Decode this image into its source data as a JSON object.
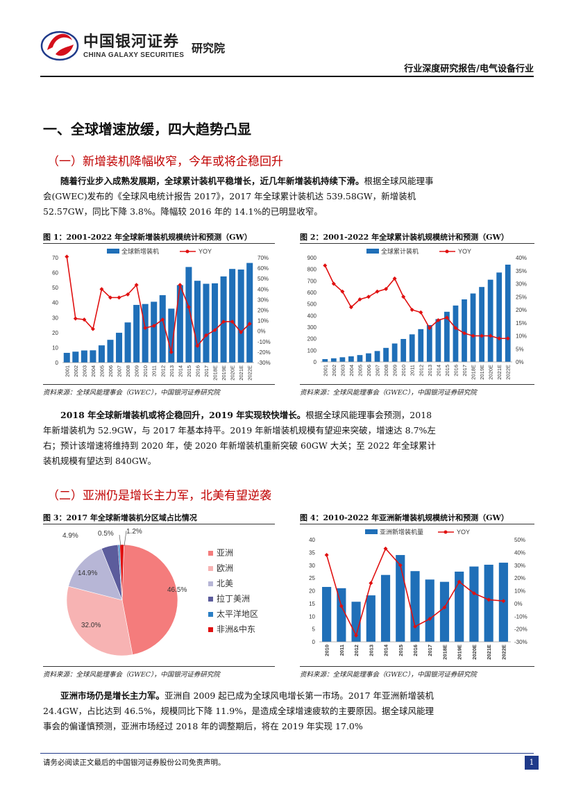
{
  "header": {
    "brand_cn": "中国银河证券",
    "brand_inst": "研究院",
    "brand_en": "CHINA GALAXY SECURITIES",
    "report_type": "行业深度研究报告/电气设备行业"
  },
  "section1": {
    "title": "一、全球增速放缓，四大趋势凸显",
    "sub1": "（一）新增装机降幅收窄，今年或将企稳回升",
    "para1_bold": "随着行业步入成熟发展期，全球累计装机平稳增长，近几年新增装机持续下滑。",
    "para1_text": "根据全球风能理事会(GWEC)发布的《全球风电统计报告 2017》，2017 年全球累计装机达 539.58GW，新增装机 52.57GW，同比下降 3.8%。降幅较 2016 年的 14.1%的已明显收窄。",
    "para2_bold": "2018 年全球新增装机或将企稳回升，2019 年实现较快增长。",
    "para2_text": "根据全球风能理事会预测，2018 年新增装机为 52.9GW，与 2017 年基本持平。2019 年新增装机规模有望迎来突破，增速达 8.7%左右；预计该增速将维持到 2020 年，使 2020 年新增装机重新突破 60GW 大关；至 2022 年全球累计装机规模有望达到 840GW。",
    "sub2": "（二）亚洲仍是增长主力军，北美有望逆袭",
    "para3_bold": "亚洲市场仍是增长主力军。",
    "para3_text": "亚洲自 2009 起已成为全球风电增长第一市场。2017 年亚洲新增装机 24.4GW，占比达到 46.5%，规模同比下降 11.9%，是造成全球增速疲软的主要原因。据全球风能理事会的偏谨慎预测，亚洲市场经过 2018 年的调整期后，将在 2019 年实现 17.0%"
  },
  "figures": {
    "fig1_title": "图 1：2001-2022 年全球新增装机规模统计和预测（GW）",
    "fig2_title": "图 2：2001-2022 年全球累计装机规模统计和预测（GW）",
    "fig3_title": "图 3：2017 年全球新增装机分区域占比情况",
    "fig4_title": "图 4：2010-2022 年亚洲新增装机规模统计和预测（GW）",
    "source": "资料来源：全球风能理事会（GWEC），中国银河证券研究院"
  },
  "chart_data": [
    {
      "type": "bar",
      "categories": [
        "2001",
        "2002",
        "2003",
        "2004",
        "2005",
        "2006",
        "2007",
        "2008",
        "2009",
        "2010",
        "2011",
        "2012",
        "2013",
        "2014",
        "2015",
        "2016",
        "2017",
        "2018E",
        "2019E",
        "2020E",
        "2021E",
        "2022E"
      ],
      "series": [
        {
          "name": "全球新增装机",
          "type": "bar",
          "axis": "left",
          "values": [
            6.5,
            7.3,
            8.1,
            8.2,
            11.5,
            15.2,
            19.9,
            26.8,
            38.5,
            39.1,
            40.6,
            45.0,
            36.0,
            51.7,
            63.8,
            54.6,
            52.6,
            52.9,
            57.5,
            62.5,
            62.1,
            66.5
          ]
        },
        {
          "name": "YOY",
          "type": "line",
          "axis": "right",
          "values": [
            71,
            12,
            11,
            2,
            40,
            32,
            32,
            35,
            44,
            3,
            5,
            11,
            -20,
            44,
            23,
            -14,
            -4,
            1,
            9,
            9,
            -1,
            7
          ]
        }
      ],
      "ylim_left": [
        0,
        70
      ],
      "ylim_right": [
        -30,
        70
      ],
      "yticks_left": [
        "0",
        "10",
        "20",
        "30",
        "40",
        "50",
        "60",
        "70"
      ],
      "yticks_right": [
        "-30%",
        "-20%",
        "-10%",
        "0%",
        "10%",
        "20%",
        "30%",
        "40%",
        "50%",
        "60%",
        "70%"
      ],
      "bar_color": "#1f6fb8",
      "line_color": "#e01010"
    },
    {
      "type": "bar",
      "categories": [
        "2001",
        "2002",
        "2003",
        "2004",
        "2005",
        "2006",
        "2007",
        "2008",
        "2009",
        "2010",
        "2011",
        "2012",
        "2013",
        "2014",
        "2015",
        "2016",
        "2017",
        "2018E",
        "2019E",
        "2020E",
        "2021E",
        "2022E"
      ],
      "series": [
        {
          "name": "全球累计装机",
          "type": "bar",
          "axis": "left",
          "values": [
            24,
            31,
            40,
            48,
            59,
            74,
            94,
            121,
            159,
            198,
            238,
            283,
            318,
            370,
            433,
            487,
            540,
            591,
            647,
            710,
            772,
            840
          ]
        },
        {
          "name": "YOY",
          "type": "line",
          "axis": "right",
          "values": [
            37,
            30,
            27,
            21,
            24,
            25,
            27,
            28,
            32,
            25,
            20,
            19,
            13,
            16,
            17,
            13,
            11,
            10,
            10,
            10,
            9,
            9
          ]
        }
      ],
      "ylim_left": [
        0,
        900
      ],
      "ylim_right": [
        0,
        40
      ],
      "yticks_left": [
        "0",
        "100",
        "200",
        "300",
        "400",
        "500",
        "600",
        "700",
        "800",
        "900"
      ],
      "yticks_right": [
        "0%",
        "5%",
        "10%",
        "15%",
        "20%",
        "25%",
        "30%",
        "35%",
        "40%"
      ],
      "bar_color": "#1f6fb8",
      "line_color": "#e01010"
    },
    {
      "type": "pie",
      "categories": [
        "亚洲",
        "欧洲",
        "北美",
        "拉丁美洲",
        "太平洋地区",
        "非洲&中东"
      ],
      "values": [
        46.5,
        32.0,
        14.9,
        4.9,
        0.5,
        1.2
      ],
      "labels": [
        "46.5%",
        "32.0%",
        "14.9%",
        "4.9%",
        "0.5%",
        "1.2%"
      ],
      "colors": [
        "#f47c7c",
        "#f7b3b3",
        "#b7b6d6",
        "#5c5c9c",
        "#2b7fc4",
        "#e01010"
      ]
    },
    {
      "type": "bar",
      "categories": [
        "2010",
        "2011",
        "2012",
        "2013",
        "2014",
        "2015",
        "2016",
        "2017",
        "2018E",
        "2019E",
        "2020E",
        "2021E",
        "2022E"
      ],
      "series": [
        {
          "name": "亚洲新增装机量",
          "type": "bar",
          "axis": "left",
          "values": [
            21.5,
            21.0,
            15.7,
            18.2,
            26.2,
            34.0,
            27.7,
            24.4,
            23.5,
            27.5,
            29.5,
            30.2,
            31.0
          ]
        },
        {
          "name": "YOY",
          "type": "line",
          "axis": "right",
          "values": [
            38,
            -2,
            -25,
            16,
            43,
            30,
            -18,
            -12,
            -3,
            17,
            8,
            3,
            2
          ]
        }
      ],
      "ylim_left": [
        0,
        40
      ],
      "ylim_right": [
        -30,
        50
      ],
      "yticks_left": [
        "0",
        "5",
        "10",
        "15",
        "20",
        "25",
        "30",
        "35",
        "40"
      ],
      "yticks_right": [
        "-30%",
        "-20%",
        "-10%",
        "0%",
        "10%",
        "20%",
        "30%",
        "40%",
        "50%"
      ],
      "bar_color": "#1f6fb8",
      "line_color": "#e01010"
    }
  ],
  "footer": {
    "disclaimer": "请务必阅读正文最后的中国银河证券股份公司免责声明。",
    "page": "1"
  }
}
